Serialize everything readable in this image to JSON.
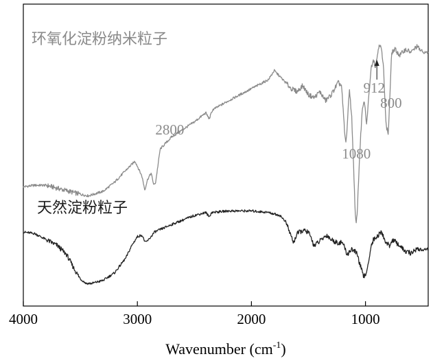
{
  "chart_data": {
    "type": "line",
    "xlabel": "Wavenumber (cm",
    "xlabel_unit_superscript": "-1",
    "xlabel_close": ")",
    "xlim": [
      4000,
      450
    ],
    "x_ticks": [
      {
        "value": 4000,
        "label": "4000"
      },
      {
        "value": 3000,
        "label": "3000"
      },
      {
        "value": 2000,
        "label": "2000"
      },
      {
        "value": 1000,
        "label": "1000"
      }
    ],
    "y_ticks_shown": false,
    "grid": false,
    "series": [
      {
        "name": "环氧化淀粉纳米粒子",
        "color": "#8a8a8a",
        "offset": "top",
        "points": [
          [
            4000,
            0.395
          ],
          [
            3900,
            0.4
          ],
          [
            3800,
            0.4
          ],
          [
            3700,
            0.39
          ],
          [
            3600,
            0.38
          ],
          [
            3500,
            0.37
          ],
          [
            3430,
            0.365
          ],
          [
            3300,
            0.38
          ],
          [
            3200,
            0.41
          ],
          [
            3100,
            0.45
          ],
          [
            3020,
            0.48
          ],
          [
            2960,
            0.43
          ],
          [
            2935,
            0.385
          ],
          [
            2910,
            0.42
          ],
          [
            2880,
            0.44
          ],
          [
            2855,
            0.4
          ],
          [
            2840,
            0.41
          ],
          [
            2800,
            0.52
          ],
          [
            2700,
            0.56
          ],
          [
            2500,
            0.61
          ],
          [
            2400,
            0.64
          ],
          [
            2370,
            0.62
          ],
          [
            2340,
            0.65
          ],
          [
            2200,
            0.68
          ],
          [
            2000,
            0.72
          ],
          [
            1850,
            0.75
          ],
          [
            1800,
            0.78
          ],
          [
            1750,
            0.76
          ],
          [
            1700,
            0.74
          ],
          [
            1650,
            0.72
          ],
          [
            1600,
            0.71
          ],
          [
            1550,
            0.73
          ],
          [
            1500,
            0.7
          ],
          [
            1450,
            0.69
          ],
          [
            1400,
            0.71
          ],
          [
            1350,
            0.68
          ],
          [
            1300,
            0.7
          ],
          [
            1240,
            0.74
          ],
          [
            1210,
            0.73
          ],
          [
            1180,
            0.56
          ],
          [
            1170,
            0.54
          ],
          [
            1155,
            0.63
          ],
          [
            1140,
            0.72
          ],
          [
            1120,
            0.62
          ],
          [
            1100,
            0.42
          ],
          [
            1090,
            0.3
          ],
          [
            1080,
            0.27
          ],
          [
            1070,
            0.33
          ],
          [
            1050,
            0.51
          ],
          [
            1030,
            0.64
          ],
          [
            1010,
            0.68
          ],
          [
            990,
            0.6
          ],
          [
            970,
            0.7
          ],
          [
            950,
            0.79
          ],
          [
            930,
            0.82
          ],
          [
            912,
            0.79
          ],
          [
            900,
            0.82
          ],
          [
            880,
            0.87
          ],
          [
            860,
            0.85
          ],
          [
            840,
            0.78
          ],
          [
            820,
            0.6
          ],
          [
            800,
            0.57
          ],
          [
            790,
            0.66
          ],
          [
            770,
            0.84
          ],
          [
            740,
            0.85
          ],
          [
            700,
            0.83
          ],
          [
            650,
            0.85
          ],
          [
            600,
            0.84
          ],
          [
            550,
            0.86
          ],
          [
            500,
            0.84
          ],
          [
            450,
            0.84
          ]
        ]
      },
      {
        "name": "天然淀粉粒子",
        "color": "#222222",
        "offset": "bottom",
        "points": [
          [
            4000,
            0.245
          ],
          [
            3900,
            0.24
          ],
          [
            3800,
            0.22
          ],
          [
            3700,
            0.2
          ],
          [
            3620,
            0.17
          ],
          [
            3550,
            0.12
          ],
          [
            3500,
            0.09
          ],
          [
            3450,
            0.075
          ],
          [
            3400,
            0.075
          ],
          [
            3300,
            0.085
          ],
          [
            3200,
            0.11
          ],
          [
            3100,
            0.16
          ],
          [
            3050,
            0.2
          ],
          [
            3000,
            0.23
          ],
          [
            2960,
            0.235
          ],
          [
            2930,
            0.21
          ],
          [
            2900,
            0.22
          ],
          [
            2850,
            0.245
          ],
          [
            2700,
            0.27
          ],
          [
            2500,
            0.3
          ],
          [
            2400,
            0.31
          ],
          [
            2370,
            0.295
          ],
          [
            2350,
            0.31
          ],
          [
            2200,
            0.315
          ],
          [
            2000,
            0.315
          ],
          [
            1850,
            0.31
          ],
          [
            1750,
            0.3
          ],
          [
            1700,
            0.28
          ],
          [
            1650,
            0.23
          ],
          [
            1630,
            0.21
          ],
          [
            1600,
            0.24
          ],
          [
            1550,
            0.25
          ],
          [
            1500,
            0.245
          ],
          [
            1450,
            0.2
          ],
          [
            1400,
            0.215
          ],
          [
            1340,
            0.235
          ],
          [
            1300,
            0.22
          ],
          [
            1250,
            0.21
          ],
          [
            1200,
            0.21
          ],
          [
            1160,
            0.17
          ],
          [
            1150,
            0.175
          ],
          [
            1120,
            0.19
          ],
          [
            1100,
            0.18
          ],
          [
            1080,
            0.18
          ],
          [
            1050,
            0.14
          ],
          [
            1020,
            0.1
          ],
          [
            1000,
            0.1
          ],
          [
            980,
            0.13
          ],
          [
            950,
            0.2
          ],
          [
            930,
            0.22
          ],
          [
            900,
            0.23
          ],
          [
            860,
            0.245
          ],
          [
            820,
            0.21
          ],
          [
            790,
            0.2
          ],
          [
            760,
            0.22
          ],
          [
            700,
            0.2
          ],
          [
            650,
            0.18
          ],
          [
            600,
            0.175
          ],
          [
            550,
            0.19
          ],
          [
            500,
            0.185
          ],
          [
            450,
            0.19
          ]
        ]
      }
    ],
    "annotations": [
      {
        "text": "2800",
        "x": 2800,
        "target_series": "环氧化淀粉纳米粒子"
      },
      {
        "text": "1080",
        "x": 1080,
        "target_series": "环氧化淀粉纳米粒子"
      },
      {
        "text": "912",
        "x": 912,
        "target_series": "环氧化淀粉纳米粒子",
        "arrow": true
      },
      {
        "text": "800",
        "x": 800,
        "target_series": "环氧化淀粉纳米粒子"
      }
    ]
  }
}
